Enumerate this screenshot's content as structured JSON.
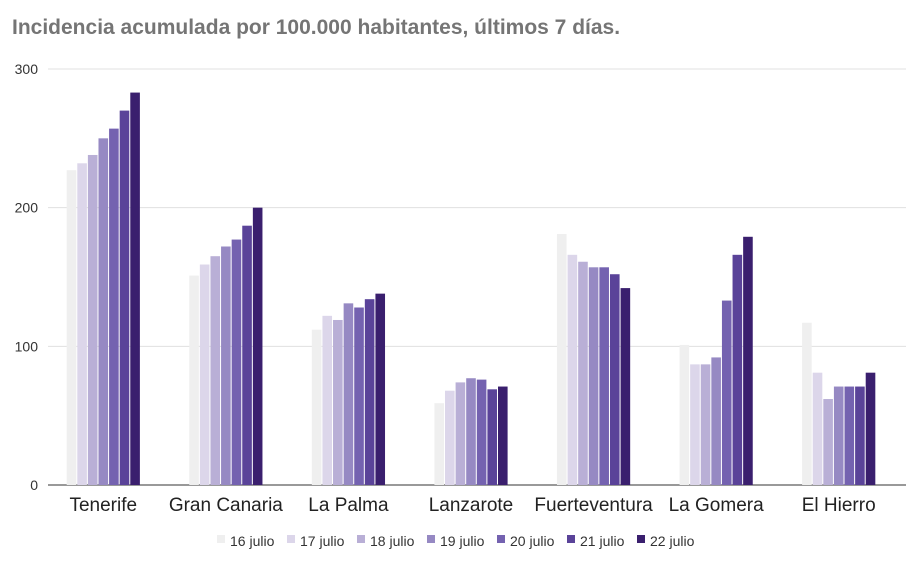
{
  "chart_data": {
    "type": "bar",
    "title": "Incidencia acumulada por 100.000 habitantes, últimos 7 días.",
    "xlabel": "",
    "ylabel": "",
    "ylim": [
      0,
      300
    ],
    "yticks": [
      0,
      100,
      200,
      300
    ],
    "grid": true,
    "legend_position": "bottom",
    "categories": [
      "Tenerife",
      "Gran Canaria",
      "La Palma",
      "Lanzarote",
      "Fuerteventura",
      "La Gomera",
      "El Hierro"
    ],
    "series": [
      {
        "name": "16 julio",
        "color": "#efefef",
        "values": [
          227,
          151,
          112,
          59,
          181,
          101,
          117
        ]
      },
      {
        "name": "17 julio",
        "color": "#dcd6ea",
        "values": [
          232,
          159,
          122,
          68,
          166,
          87,
          81
        ]
      },
      {
        "name": "18 julio",
        "color": "#b9afd6",
        "values": [
          238,
          165,
          119,
          74,
          161,
          87,
          62
        ]
      },
      {
        "name": "19 julio",
        "color": "#9689c3",
        "values": [
          250,
          172,
          131,
          77,
          157,
          92,
          71
        ]
      },
      {
        "name": "20 julio",
        "color": "#7462b0",
        "values": [
          257,
          177,
          128,
          76,
          157,
          133,
          71
        ]
      },
      {
        "name": "21 julio",
        "color": "#5a4399",
        "values": [
          270,
          187,
          134,
          69,
          152,
          166,
          71
        ]
      },
      {
        "name": "22 julio",
        "color": "#3a1f6e",
        "values": [
          283,
          200,
          138,
          71,
          142,
          179,
          81
        ]
      }
    ]
  }
}
